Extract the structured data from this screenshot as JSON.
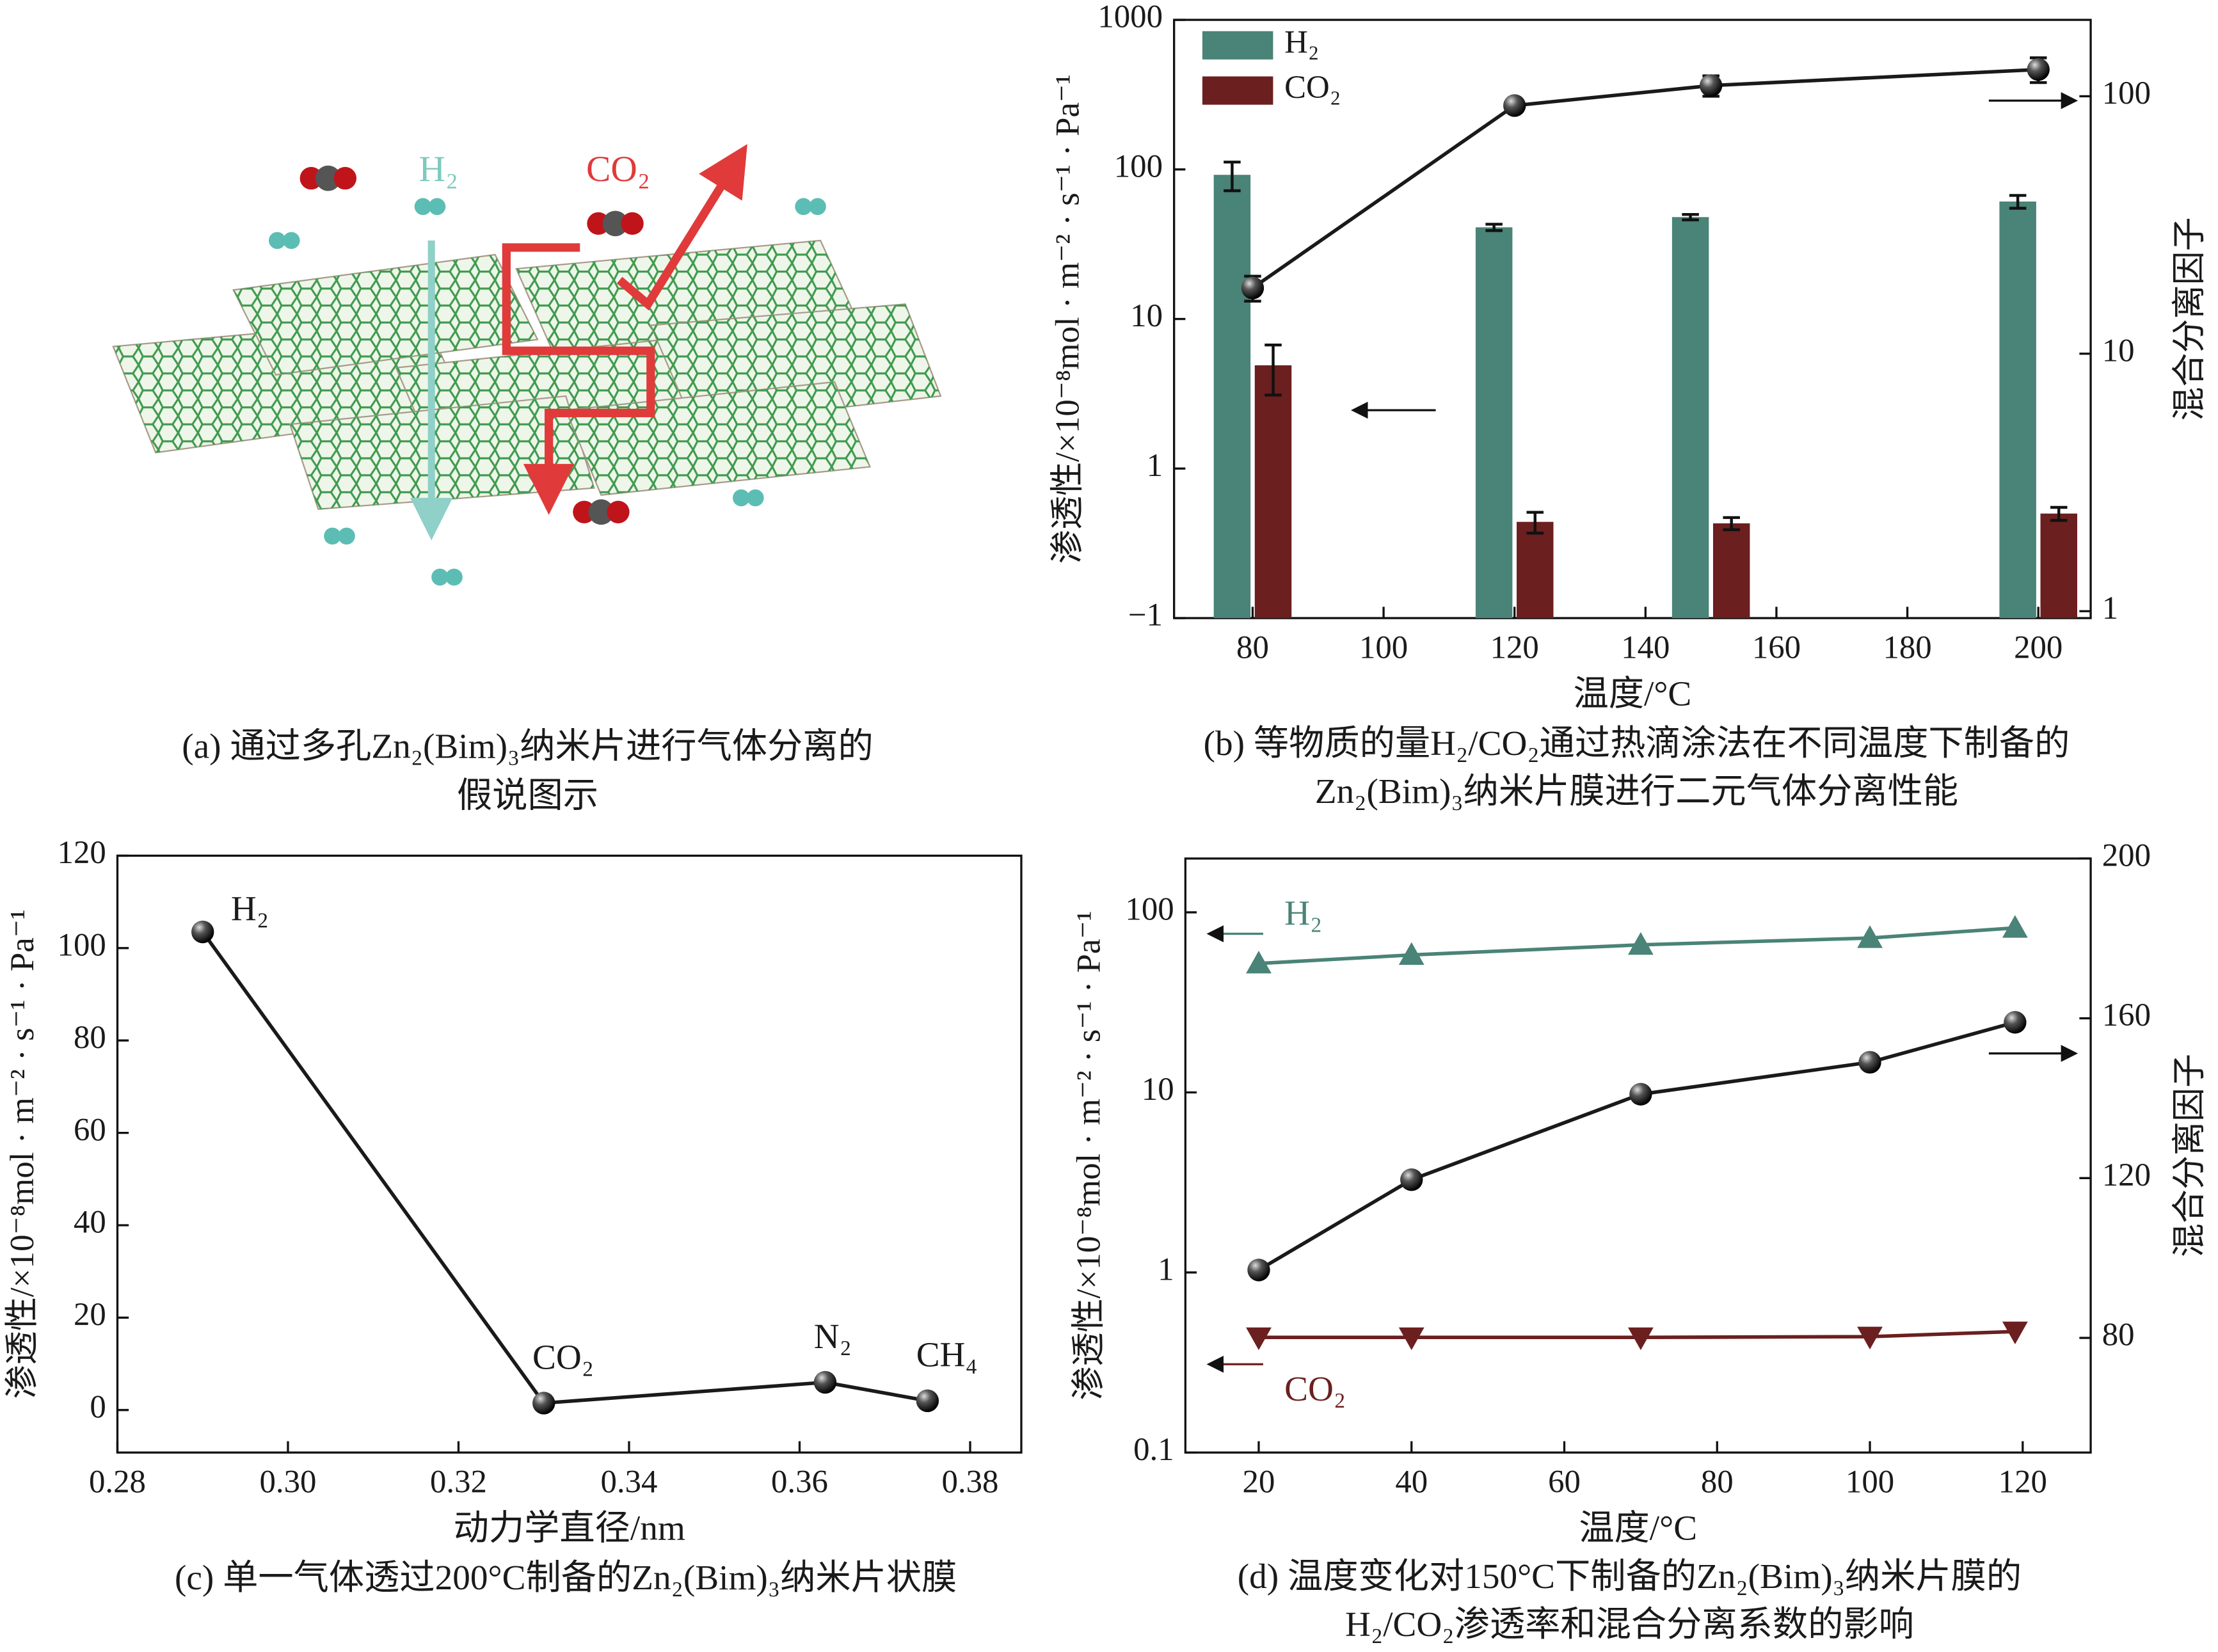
{
  "diagram": {
    "labels": [
      "H₂",
      "CO₂"
    ],
    "caption": [
      "(a) 通过多孔Zn₂(Bim)₃纳米片进行气体分离的",
      "假说图示"
    ]
  },
  "chart_data": [
    {
      "type": "bar",
      "x": [
        80,
        120,
        150,
        200
      ],
      "xlim": [
        68,
        208
      ],
      "xticks": [
        80,
        100,
        120,
        140,
        160,
        180,
        200
      ],
      "xlabel": "温度/°C",
      "ylabel": "渗透性/×10⁻⁸mol · m⁻² · s⁻¹ · Pa⁻¹",
      "y2label": "混合分离因子",
      "ylog": true,
      "ylim": [
        0.1,
        1000
      ],
      "yticks": [
        {
          "value": 0.1,
          "label": "−1"
        },
        1,
        10,
        100,
        1000
      ],
      "y2log": true,
      "y2lim": [
        0.94,
        198
      ],
      "y2ticks": [
        1,
        10,
        100
      ],
      "legend": "upper left",
      "series": [
        {
          "name": "H₂",
          "color": "#4a8377",
          "values": [
            92,
            41,
            48,
            61
          ],
          "errors": [
            20,
            2,
            2,
            6
          ]
        },
        {
          "name": "CO₂",
          "color": "#6b1f1f",
          "values": [
            4.9,
            0.44,
            0.43,
            0.5
          ],
          "errors": [
            1.8,
            0.07,
            0.04,
            0.05
          ]
        },
        {
          "type": "line",
          "axis": "y2",
          "color": "#1a1a1a",
          "marker": "circle",
          "values": [
            18,
            92,
            110,
            127
          ],
          "errors": [
            2,
            4,
            10,
            14
          ]
        }
      ],
      "caption": [
        "(b) 等物质的量H₂/CO₂通过热滴涂法在不同温度下制备的",
        "Zn₂(Bim)₃纳米片膜进行二元气体分离性能"
      ]
    },
    {
      "type": "line",
      "x": [
        0.29,
        0.33,
        0.363,
        0.375
      ],
      "xlim": [
        0.28,
        0.386
      ],
      "xticks": [
        0.28,
        {
          "value": 0.3,
          "label": "0.30"
        },
        0.32,
        0.34,
        0.36,
        0.38
      ],
      "ylim": [
        -9.2,
        120
      ],
      "yticks": [
        0,
        20,
        40,
        60,
        80,
        100,
        120
      ],
      "xlabel": "动力学直径/nm",
      "ylabel": "渗透性/×10⁻⁸mol · m⁻² · s⁻¹ · Pa⁻¹",
      "point_labels": [
        "H₂",
        "CO₂",
        "N₂",
        "CH₄"
      ],
      "series": [
        {
          "color": "#1a1a1a",
          "marker": "circle",
          "values": [
            103.5,
            1.5,
            6,
            2
          ]
        }
      ],
      "caption": [
        "(c) 单一气体透过200°C制备的Zn₂(Bim)₃纳米片状膜"
      ]
    },
    {
      "type": "line",
      "x": [
        20,
        40,
        70,
        100,
        119
      ],
      "xlim": [
        10.4,
        128.9
      ],
      "xticks": [
        20,
        40,
        60,
        80,
        100,
        120
      ],
      "xlabel": "温度/°C",
      "ylabel": "渗透性/×10⁻⁸mol · m⁻² · s⁻¹ · Pa⁻¹",
      "y2label": "混合分离因子",
      "ylog": true,
      "ylim": [
        0.1,
        199
      ],
      "yticks": [
        0.1,
        1,
        10,
        100
      ],
      "y2lim": [
        51.3,
        200
      ],
      "y2ticks": [
        80,
        120,
        160,
        200
      ],
      "legend": "inline",
      "series": [
        {
          "name": "H₂",
          "color": "#4a8377",
          "marker": "triangle-up",
          "values": [
            52,
            58,
            66,
            72,
            82
          ]
        },
        {
          "name": "CO₂",
          "color": "#6b1f1f",
          "marker": "triangle-down",
          "values": [
            0.436,
            0.436,
            0.436,
            0.44,
            0.47
          ]
        },
        {
          "axis": "y2",
          "color": "#1a1a1a",
          "marker": "circle",
          "values": [
            97,
            119.6,
            141,
            149,
            159
          ]
        }
      ],
      "caption": [
        "(d) 温度变化对150°C下制备的Zn₂(Bim)₃纳米片膜的",
        "H₂/CO₂渗透率和混合分离系数的影响"
      ]
    }
  ]
}
